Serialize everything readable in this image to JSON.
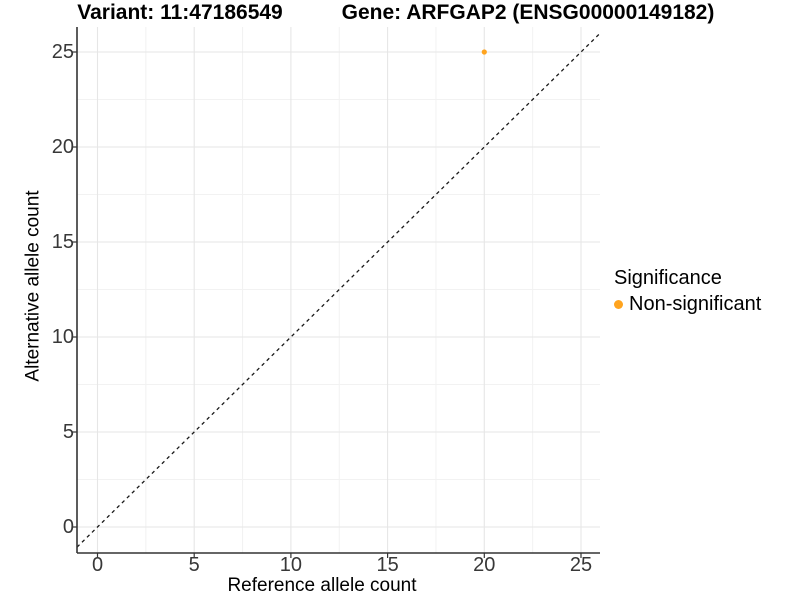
{
  "titles": {
    "variant": "Variant: 11:47186549",
    "gene": "Gene: ARFGAP2 (ENSG00000149182)"
  },
  "axes": {
    "x_label": "Reference allele count",
    "y_label": "Alternative allele count",
    "x_tick_labels": [
      "0",
      "5",
      "10",
      "15",
      "20",
      "25"
    ],
    "y_tick_labels": [
      "0",
      "5",
      "10",
      "15",
      "20",
      "25"
    ]
  },
  "legend": {
    "title": "Significance",
    "items": [
      {
        "label": "Non-significant",
        "color": "#FFA41F"
      }
    ]
  },
  "chart_data": {
    "type": "scatter",
    "title": "Variant: 11:47186549 | Gene: ARFGAP2 (ENSG00000149182)",
    "xlabel": "Reference allele count",
    "ylabel": "Alternative allele count",
    "xlim": [
      -1.3,
      26.3
    ],
    "ylim": [
      -1.3,
      26.3
    ],
    "x_ticks": [
      0,
      5,
      10,
      15,
      20,
      25
    ],
    "y_ticks": [
      0,
      5,
      10,
      15,
      20,
      25
    ],
    "grid": true,
    "legend_position": "right",
    "series": [
      {
        "name": "Non-significant",
        "color": "#FFA41F",
        "point_radius": 2.6,
        "points": [
          {
            "x": 20,
            "y": 25
          }
        ]
      }
    ],
    "reference_line": {
      "slope": 1,
      "intercept": 0,
      "style": "dashed",
      "color": "#1A1A1A"
    },
    "colors": {
      "grid_major": "#E6E6E6",
      "grid_minor": "#F2F2F2",
      "axis_line": "#333333",
      "tick_text": "#383838",
      "point": "#FFA41F",
      "background": "#FFFFFF"
    }
  }
}
